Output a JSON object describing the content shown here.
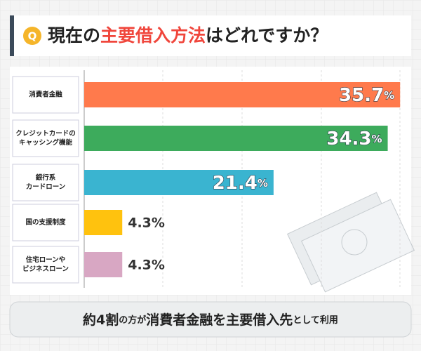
{
  "chart_data": {
    "type": "hbar",
    "badge": "Q",
    "title_parts": [
      "現在の",
      "主要借入方法",
      "はどれですか？"
    ],
    "categories": [
      [
        "消費者金融"
      ],
      [
        "クレジットカードの",
        "キャッシング機能"
      ],
      [
        "銀行系",
        "カードローン"
      ],
      [
        "国の支援制度"
      ],
      [
        "住宅ローンや",
        "ビジネスローン"
      ]
    ],
    "values": [
      35.7,
      34.3,
      21.4,
      4.3,
      4.3
    ],
    "value_labels": [
      "35.7%",
      "34.3%",
      "21.4%",
      "4.3%",
      "4.3%"
    ],
    "colors": [
      "#ff7a4c",
      "#3dab5c",
      "#3ab4d0",
      "#ffc20e",
      "#d8a7c3"
    ],
    "xlim": [
      0,
      36
    ],
    "footer_parts": [
      "約4割",
      "の方が",
      "消費者金融を主要借入先",
      "として利用"
    ]
  }
}
